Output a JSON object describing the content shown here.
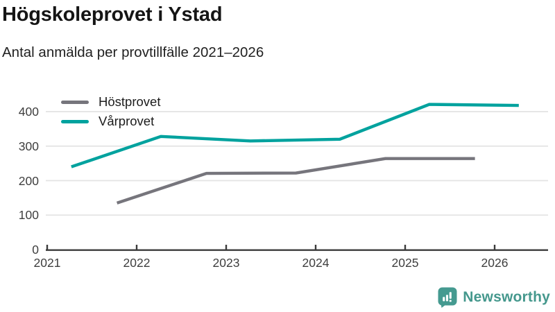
{
  "header": {
    "title": "Högskoleprovet i Ystad",
    "subtitle": "Antal anmälda per provtillfälle 2021–2026"
  },
  "legend": {
    "position": "top-left",
    "items": [
      {
        "label": "Höstprovet",
        "color": "#76757c"
      },
      {
        "label": "Vårprovet",
        "color": "#00a29e"
      }
    ]
  },
  "branding": {
    "wordmark": "Newsworthy",
    "wordmark_color": "#45988d",
    "icon": "newsworthy-speech-bubble-bar-chart-icon",
    "icon_color": "#459a90"
  },
  "chart_data": {
    "type": "line",
    "title": "Högskoleprovet i Ystad",
    "subtitle": "Antal anmälda per provtillfälle 2021–2026",
    "xlabel": "",
    "ylabel": "",
    "x_ticks": [
      2021,
      2022,
      2023,
      2024,
      2025,
      2026
    ],
    "y_ticks": [
      0,
      100,
      200,
      300,
      400
    ],
    "xlim": [
      2021,
      2026.6
    ],
    "ylim": [
      0,
      440
    ],
    "grid": "horizontal-only",
    "gridline_color": "#e3e3e3",
    "axis_color": "#3b3b3b",
    "legend_position": "top-left",
    "series": [
      {
        "name": "Höstprovet",
        "color": "#76757c",
        "x": [
          2021.78,
          2022.78,
          2023.78,
          2024.78,
          2025.78
        ],
        "values": [
          135,
          221,
          222,
          264,
          264
        ]
      },
      {
        "name": "Vårprovet",
        "color": "#00a29e",
        "x": [
          2021.27,
          2022.27,
          2023.27,
          2024.27,
          2025.27,
          2026.27
        ],
        "values": [
          240,
          328,
          315,
          320,
          421,
          418
        ]
      }
    ]
  }
}
